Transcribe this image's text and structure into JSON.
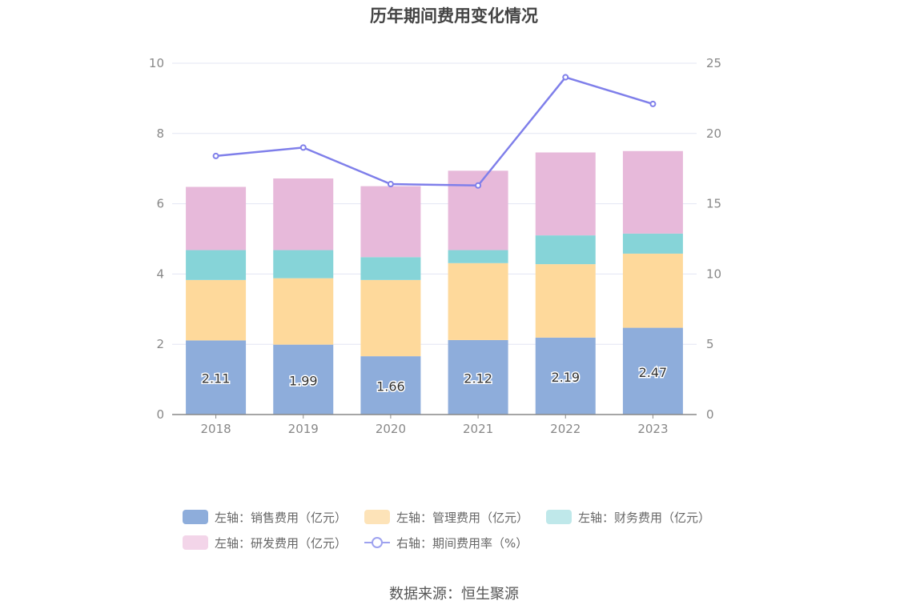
{
  "chart_data": {
    "type": "bar",
    "title": "历年期间费用变化情况",
    "categories": [
      "2018",
      "2019",
      "2020",
      "2021",
      "2022",
      "2023"
    ],
    "series": [
      {
        "name": "左轴：销售费用（亿元）",
        "type": "bar",
        "axis": "left",
        "stack": "total",
        "color": "#8eaddb",
        "values": [
          2.11,
          1.99,
          1.66,
          2.12,
          2.19,
          2.47
        ],
        "labels": [
          "2.11",
          "1.99",
          "1.66",
          "2.12",
          "2.19",
          "2.47"
        ]
      },
      {
        "name": "左轴：管理费用（亿元）",
        "type": "bar",
        "axis": "left",
        "stack": "total",
        "color": "#fed99b",
        "values": [
          1.72,
          1.89,
          2.17,
          2.19,
          2.09,
          2.11
        ]
      },
      {
        "name": "左轴：财务费用（亿元）",
        "type": "bar",
        "axis": "left",
        "stack": "total",
        "color": "#86d4d8",
        "values": [
          0.85,
          0.8,
          0.65,
          0.37,
          0.82,
          0.57
        ]
      },
      {
        "name": "左轴：研发费用（亿元）",
        "type": "bar",
        "axis": "left",
        "stack": "total",
        "color": "#e7b9da",
        "values": [
          1.8,
          2.04,
          2.02,
          2.26,
          2.36,
          2.35
        ]
      },
      {
        "name": "右轴：期间费用率（%）",
        "type": "line",
        "axis": "right",
        "color": "#7f7fea",
        "values": [
          18.4,
          19.0,
          16.4,
          16.3,
          24.0,
          22.1
        ]
      }
    ],
    "y_left": {
      "min": 0,
      "max": 10,
      "ticks": [
        "0",
        "2",
        "4",
        "6",
        "8",
        "10"
      ]
    },
    "y_right": {
      "min": 0,
      "max": 25,
      "ticks": [
        "0",
        "5",
        "10",
        "15",
        "20",
        "25"
      ]
    },
    "grid": true,
    "legend_position": "bottom"
  },
  "legend_colors": [
    "#8eaddb",
    "#fde3b8",
    "#bfe8ea",
    "#f3d5e9",
    "#9ea2ef"
  ],
  "source": "数据来源：恒生聚源"
}
